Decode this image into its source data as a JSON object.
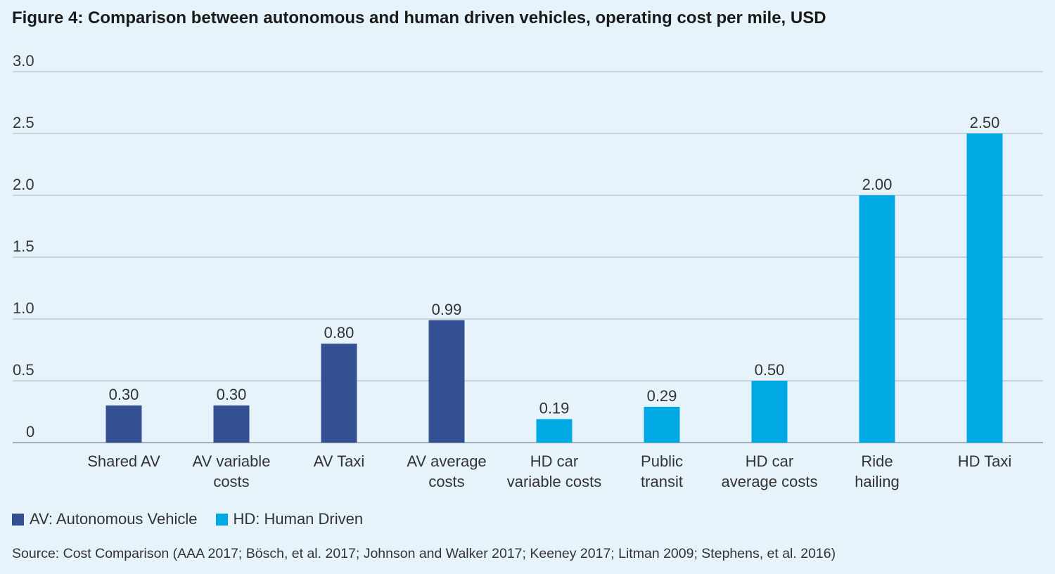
{
  "chart_data": {
    "type": "bar",
    "title": "Figure 4: Comparison between autonomous and human driven vehicles, operating cost per mile, USD",
    "categories": [
      [
        "Shared AV"
      ],
      [
        "AV variable",
        "costs"
      ],
      [
        "AV Taxi"
      ],
      [
        "AV average",
        "costs"
      ],
      [
        "HD car",
        "variable costs"
      ],
      [
        "Public",
        "transit"
      ],
      [
        "HD car",
        "average costs"
      ],
      [
        "Ride",
        "hailing"
      ],
      [
        "HD Taxi"
      ]
    ],
    "values": [
      0.3,
      0.3,
      0.8,
      0.99,
      0.19,
      0.29,
      0.5,
      2.0,
      2.5
    ],
    "value_labels": [
      "0.30",
      "0.30",
      "0.80",
      "0.99",
      "0.19",
      "0.29",
      "0.50",
      "2.00",
      "2.50"
    ],
    "groups": [
      "AV",
      "AV",
      "AV",
      "AV",
      "HD",
      "HD",
      "HD",
      "HD",
      "HD"
    ],
    "yticks": [
      "0",
      "0.5",
      "1.0",
      "1.5",
      "2.0",
      "2.5",
      "3.0"
    ],
    "ylim": [
      0,
      3.0
    ],
    "grid": true,
    "legend_placement": "bottom-left",
    "legend": [
      {
        "group": "AV",
        "label": "AV: Autonomous Vehicle",
        "color": "#354f93"
      },
      {
        "group": "HD",
        "label": "HD: Human Driven",
        "color": "#00a8e4"
      }
    ],
    "xlabel": "",
    "ylabel": ""
  },
  "source": "Source: Cost Comparison (AAA 2017; Bösch, et al. 2017; Johnson and Walker 2017; Keeney 2017; Litman 2009; Stephens, et al. 2016)"
}
